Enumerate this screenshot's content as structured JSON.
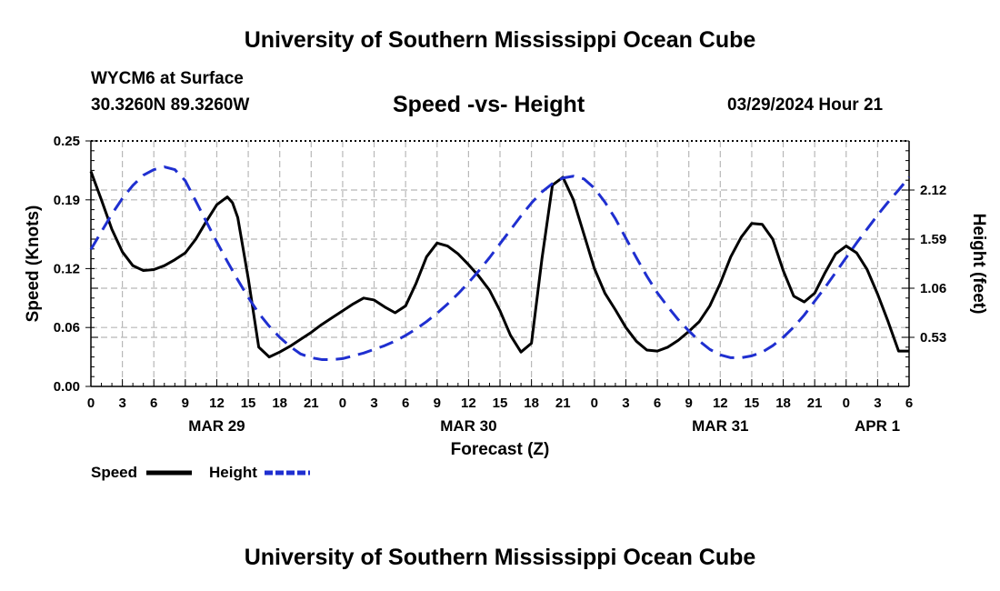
{
  "header": {
    "title": "University of Southern Mississippi Ocean Cube",
    "station": "WYCM6 at Surface",
    "coords": "30.3260N  89.3260W",
    "subtitle": "Speed -vs- Height",
    "datetime": "03/29/2024 Hour 21"
  },
  "footer": {
    "title": "University of Southern Mississippi Ocean Cube"
  },
  "chart_data": {
    "type": "line",
    "title": "Speed -vs- Height",
    "xlabel": "Forecast (Z)",
    "ylabel": "Speed (Knots)",
    "y2label": "Height (feet)",
    "x_range_hours": [
      0,
      78
    ],
    "x_tick_labels": [
      "0",
      "3",
      "6",
      "9",
      "12",
      "15",
      "18",
      "21",
      "0",
      "3",
      "6",
      "9",
      "12",
      "15",
      "18",
      "21",
      "0",
      "3",
      "6",
      "9",
      "12",
      "15",
      "18",
      "21",
      "0",
      "3",
      "6"
    ],
    "date_labels": [
      {
        "label": "MAR 29",
        "hour": 12
      },
      {
        "label": "MAR 30",
        "hour": 36
      },
      {
        "label": "MAR 31",
        "hour": 60
      },
      {
        "label": "APR 1",
        "hour": 78
      }
    ],
    "ylim": [
      0,
      0.25
    ],
    "y_ticks": [
      0.0,
      0.06,
      0.12,
      0.19,
      0.25
    ],
    "y_tick_labels": [
      "0.00",
      "0.06",
      "0.12",
      "0.19",
      "0.25"
    ],
    "y2lim": [
      0.0,
      2.65
    ],
    "y2_ticks": [
      0.53,
      1.06,
      1.59,
      2.12
    ],
    "y2_tick_labels": [
      "0.53",
      "1.06",
      "1.59",
      "2.12"
    ],
    "grid": true,
    "series": [
      {
        "name": "Speed",
        "axis": "left",
        "color": "#000000",
        "style": "solid",
        "x": [
          0,
          1,
          2,
          3,
          4,
          5,
          6,
          7,
          8,
          9,
          10,
          11,
          12,
          13,
          13.5,
          14,
          15,
          16,
          17,
          18,
          19,
          20,
          21,
          22,
          23,
          24,
          25,
          26,
          27,
          28,
          29,
          30,
          31,
          32,
          33,
          34,
          35,
          36,
          37,
          38,
          39,
          40,
          41,
          42,
          43,
          44,
          45,
          46,
          47,
          48,
          49,
          50,
          51,
          52,
          53,
          54,
          55,
          56,
          57,
          58,
          59,
          60,
          61,
          62,
          63,
          64,
          65,
          66,
          67,
          68,
          69,
          70,
          71,
          72,
          73,
          74,
          75,
          76,
          77,
          78
        ],
        "values": [
          0.219,
          0.19,
          0.16,
          0.137,
          0.123,
          0.118,
          0.119,
          0.123,
          0.129,
          0.136,
          0.15,
          0.168,
          0.185,
          0.193,
          0.187,
          0.172,
          0.11,
          0.04,
          0.03,
          0.035,
          0.041,
          0.048,
          0.055,
          0.063,
          0.07,
          0.077,
          0.084,
          0.09,
          0.088,
          0.081,
          0.075,
          0.082,
          0.105,
          0.132,
          0.146,
          0.143,
          0.135,
          0.124,
          0.112,
          0.098,
          0.077,
          0.052,
          0.035,
          0.044,
          0.13,
          0.205,
          0.213,
          0.19,
          0.155,
          0.12,
          0.095,
          0.078,
          0.06,
          0.046,
          0.037,
          0.036,
          0.04,
          0.047,
          0.056,
          0.066,
          0.082,
          0.105,
          0.132,
          0.152,
          0.166,
          0.165,
          0.15,
          0.118,
          0.092,
          0.086,
          0.095,
          0.116,
          0.135,
          0.143,
          0.136,
          0.119,
          0.094,
          0.066,
          0.036,
          0.036
        ]
      },
      {
        "name": "Height",
        "axis": "right",
        "color": "#1f2fd0",
        "style": "dashed",
        "x": [
          0,
          1,
          2,
          3,
          4,
          5,
          6,
          7,
          8,
          9,
          10,
          11,
          12,
          13,
          14,
          15,
          16,
          17,
          18,
          19,
          20,
          21,
          22,
          23,
          24,
          25,
          26,
          27,
          28,
          29,
          30,
          31,
          32,
          33,
          34,
          35,
          36,
          37,
          38,
          39,
          40,
          41,
          42,
          43,
          44,
          45,
          46,
          47,
          48,
          49,
          50,
          51,
          52,
          53,
          54,
          55,
          56,
          57,
          58,
          59,
          60,
          61,
          62,
          63,
          64,
          65,
          66,
          67,
          68,
          69,
          70,
          71,
          72,
          73,
          74,
          75,
          76,
          77,
          78
        ],
        "values": [
          1.48,
          1.67,
          1.86,
          2.03,
          2.17,
          2.28,
          2.34,
          2.37,
          2.34,
          2.22,
          2.0,
          1.78,
          1.56,
          1.35,
          1.15,
          0.96,
          0.79,
          0.65,
          0.53,
          0.43,
          0.35,
          0.31,
          0.29,
          0.29,
          0.3,
          0.33,
          0.36,
          0.4,
          0.44,
          0.49,
          0.55,
          0.62,
          0.7,
          0.79,
          0.89,
          1.0,
          1.12,
          1.25,
          1.39,
          1.54,
          1.69,
          1.84,
          1.98,
          2.1,
          2.19,
          2.25,
          2.27,
          2.24,
          2.14,
          1.99,
          1.81,
          1.6,
          1.39,
          1.19,
          1.01,
          0.86,
          0.72,
          0.6,
          0.49,
          0.4,
          0.34,
          0.31,
          0.31,
          0.33,
          0.37,
          0.44,
          0.53,
          0.64,
          0.77,
          0.92,
          1.07,
          1.23,
          1.39,
          1.55,
          1.7,
          1.85,
          1.99,
          2.12,
          2.26
        ]
      }
    ],
    "legend": [
      {
        "label": "Speed",
        "color": "#000000",
        "style": "solid"
      },
      {
        "label": "Height",
        "color": "#1f2fd0",
        "style": "dashed"
      }
    ],
    "legend_position": "bottom-left"
  }
}
